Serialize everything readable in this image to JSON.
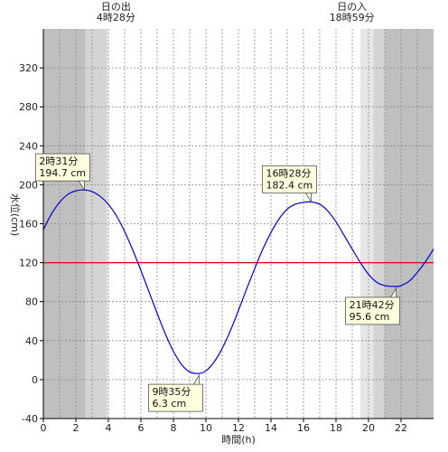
{
  "chart_data": {
    "type": "line",
    "title": "",
    "xlabel": "時間(h)",
    "ylabel": "水位(cm)",
    "xlim": [
      0,
      24
    ],
    "ylim": [
      -40,
      360
    ],
    "x_ticks": [
      "0",
      "2",
      "4",
      "6",
      "8",
      "10",
      "12",
      "14",
      "16",
      "18",
      "20",
      "22"
    ],
    "y_ticks": [
      "-40",
      "0",
      "40",
      "80",
      "120",
      "160",
      "200",
      "240",
      "280",
      "320"
    ],
    "grid": true,
    "sunrise": {
      "label": "日の出",
      "time": "4時28分",
      "hour": 4.4667
    },
    "sunset": {
      "label": "日の入",
      "time": "18時59分",
      "hour": 18.9833
    },
    "night_bands": [
      {
        "from": 0,
        "to": 2.6,
        "shade": "dark"
      },
      {
        "from": 2.6,
        "to": 3.9,
        "shade": "mid"
      },
      {
        "from": 3.9,
        "to": 4.0,
        "shade": "light"
      },
      {
        "from": 19.5,
        "to": 20.3,
        "shade": "light"
      },
      {
        "from": 20.3,
        "to": 21.0,
        "shade": "mid"
      },
      {
        "from": 21.0,
        "to": 24.0,
        "shade": "dark"
      }
    ],
    "reference_line": {
      "y": 120,
      "color": "#e00000"
    },
    "series": [
      {
        "color": "#0000cc",
        "points": [
          [
            0,
            154
          ],
          [
            0.5,
            170
          ],
          [
            1,
            182
          ],
          [
            1.5,
            190
          ],
          [
            2,
            193.8
          ],
          [
            2.52,
            194.7
          ],
          [
            3,
            193
          ],
          [
            3.5,
            188
          ],
          [
            4,
            180
          ],
          [
            4.5,
            168
          ],
          [
            5,
            152
          ],
          [
            5.5,
            133
          ],
          [
            6,
            112
          ],
          [
            6.5,
            90
          ],
          [
            7,
            68
          ],
          [
            7.5,
            47
          ],
          [
            8,
            29
          ],
          [
            8.5,
            15.5
          ],
          [
            9,
            8
          ],
          [
            9.58,
            6.3
          ],
          [
            10,
            9
          ],
          [
            10.5,
            18
          ],
          [
            11,
            32
          ],
          [
            11.5,
            50
          ],
          [
            12,
            71
          ],
          [
            12.5,
            93
          ],
          [
            13,
            114
          ],
          [
            13.5,
            134
          ],
          [
            14,
            151
          ],
          [
            14.5,
            165
          ],
          [
            15,
            175
          ],
          [
            15.5,
            180
          ],
          [
            16,
            182
          ],
          [
            16.47,
            182.4
          ],
          [
            17,
            180
          ],
          [
            17.5,
            173
          ],
          [
            18,
            162
          ],
          [
            18.5,
            148
          ],
          [
            19,
            134
          ],
          [
            19.5,
            120
          ],
          [
            20,
            108
          ],
          [
            20.5,
            100
          ],
          [
            21,
            96.5
          ],
          [
            21.7,
            95.6
          ],
          [
            22,
            96.5
          ],
          [
            22.5,
            101
          ],
          [
            23,
            110
          ],
          [
            23.5,
            121
          ],
          [
            24,
            134
          ]
        ]
      }
    ],
    "annotations": [
      {
        "time": "2時31分",
        "value": "194.7 cm",
        "x": 2.52,
        "y": 194.7,
        "pos": "above"
      },
      {
        "time": "9時35分",
        "value": "6.3 cm",
        "x": 9.58,
        "y": 6.3,
        "pos": "below"
      },
      {
        "time": "16時28分",
        "value": "182.4 cm",
        "x": 16.47,
        "y": 182.4,
        "pos": "above"
      },
      {
        "time": "21時42分",
        "value": "95.6 cm",
        "x": 21.7,
        "y": 95.6,
        "pos": "below"
      }
    ]
  }
}
